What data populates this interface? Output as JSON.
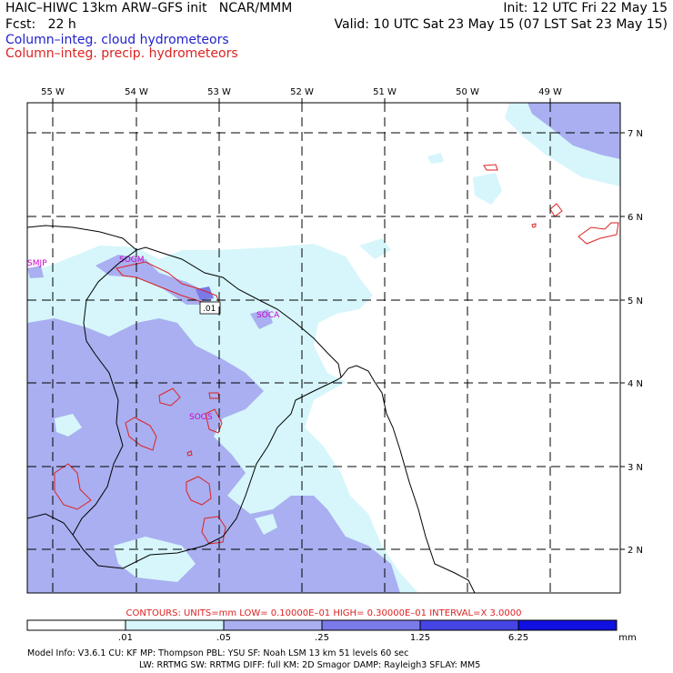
{
  "header": {
    "line1_left": "HAIC–HIWC 13km ARW–GFS init   NCAR/MMM",
    "line1_right": "Init: 12 UTC Fri 22 May 15",
    "line2_left": "Fcst:   22 h",
    "line2_right": "Valid: 10 UTC Sat 23 May 15 (07 LST Sat 23 May 15)",
    "field1": "Column–integ. cloud hydrometeors",
    "field2": "Column–integ. precip. hydrometeors"
  },
  "colors": {
    "field1": "#2222cc",
    "field2": "#dd2222",
    "ocean": "#ffffff",
    "shade_1": "#d6f6fb",
    "shade_2": "#a9aff0",
    "shade_3": "#7a7ae8",
    "shade_4": "#4545e6",
    "shade_5": "#1010e0",
    "contour": "#dd2222",
    "station": "#cc00cc"
  },
  "map": {
    "lon_labels": [
      "55 W",
      "54 W",
      "53 W",
      "52 W",
      "51 W",
      "50 W",
      "49 W"
    ],
    "lat_labels": [
      "7 N",
      "6 N",
      "5 N",
      "4 N",
      "3 N",
      "2 N"
    ],
    "stations": [
      "SMJP",
      "SOGM",
      "SOCA",
      "SOOS"
    ],
    "contour_label": ".01"
  },
  "contours_note": "CONTOURS:  UNITS=mm  LOW= 0.10000E–01  HIGH= 0.30000E–01  INTERVAL=X  3.0000",
  "colorbar": {
    "tick_labels": [
      ".01",
      ".05",
      ".25",
      "1.25",
      "6.25"
    ],
    "units": "mm"
  },
  "model_info": {
    "line1": "Model Info: V3.6.1    CU: KF        MP: Thompson     PBL: YSU       SF: Noah LSM     13 km    51 levels   60 sec",
    "line2": "LW: RRTMG    SW: RRTMG   DIFF: full    KM: 2D Smagor DAMP: Rayleigh3  SFLAY: MM5"
  }
}
